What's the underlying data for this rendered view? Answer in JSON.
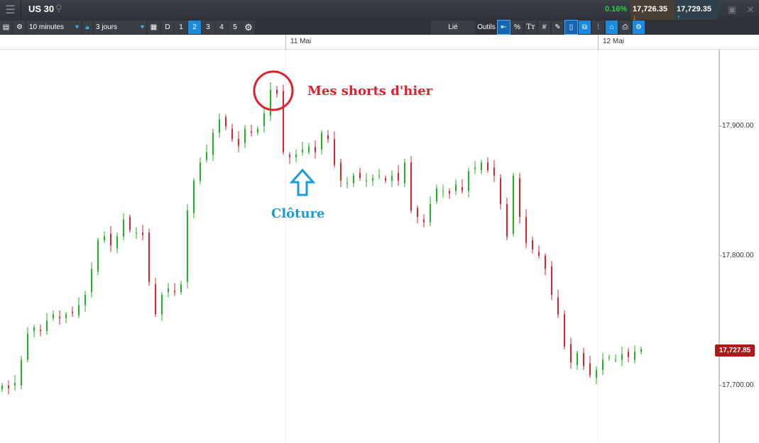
{
  "header": {
    "menu_icon": "hamburger-icon",
    "title": "US 30",
    "search_icon": "search-icon",
    "change": "0.16%",
    "bid": "17,726.35",
    "ask": "17,729.35",
    "bid_icon": "arrow-down-icon",
    "ask_icon": "arrow-up-icon",
    "colors": {
      "up": "#2ecc40",
      "bid_bg": "#4a3f33",
      "ask_bg": "#2f4048"
    }
  },
  "toolbar": {
    "interval": "10 minutes",
    "range": "3 jours",
    "D": "D",
    "layouts": [
      "1",
      "2",
      "3",
      "4",
      "5"
    ],
    "selected_layout": "2",
    "link": "Lié",
    "tools": "Outils",
    "pct": "%"
  },
  "chart_data": {
    "type": "candlestick",
    "x_labels": [
      "11 Mai",
      "12 Mai"
    ],
    "y_ticks": [
      17700,
      17800,
      17900
    ],
    "y_tick_labels": [
      "17,700.00",
      "17,800.00",
      "17,900.00"
    ],
    "ylim": [
      17670,
      17975
    ],
    "last_price": "17,727.85",
    "close": [
      17700,
      17698,
      17702,
      17720,
      17740,
      17745,
      17742,
      17750,
      17755,
      17752,
      17755,
      17756,
      17762,
      17770,
      17790,
      17812,
      17815,
      17808,
      17815,
      17828,
      17820,
      17818,
      17816,
      17780,
      17755,
      17770,
      17775,
      17772,
      17778,
      17835,
      17858,
      17872,
      17880,
      17895,
      17905,
      17900,
      17890,
      17885,
      17898,
      17895,
      17898,
      17910,
      17928,
      17925,
      17880,
      17876,
      17878,
      17882,
      17884,
      17880,
      17895,
      17890,
      17870,
      17858,
      17856,
      17862,
      17860,
      17858,
      17860,
      17862,
      17858,
      17862,
      17858,
      17872,
      17835,
      17830,
      17826,
      17840,
      17852,
      17850,
      17848,
      17855,
      17850,
      17865,
      17868,
      17872,
      17866,
      17862,
      17840,
      17815,
      17862,
      17830,
      17810,
      17805,
      17800,
      17790,
      17770,
      17755,
      17730,
      17718,
      17725,
      17715,
      17708,
      17712,
      17720,
      17722,
      17720,
      17724,
      17722,
      17726,
      17728
    ],
    "colors": {
      "up": "#1fb31f",
      "down": "#e0202a"
    },
    "annotations": [
      {
        "text": "Mes shorts d'hier",
        "color": "#e0202a"
      },
      {
        "text": "Clôture",
        "color": "#1a9ad6"
      }
    ]
  }
}
